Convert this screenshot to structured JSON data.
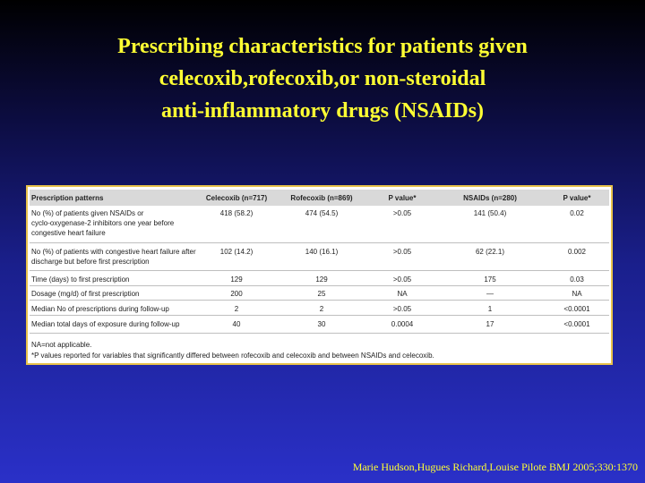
{
  "slide": {
    "title_lines": [
      "Prescribing characteristics for patients given",
      "celecoxib,rofecoxib,or non-steroidal",
      "anti-inflammatory drugs (NSAIDs)"
    ],
    "citation": "Marie Hudson,Hugues Richard,Louise Pilote BMJ 2005;330:1370"
  },
  "table": {
    "headers": [
      "Prescription patterns",
      "Celecoxib (n=717)",
      "Rofecoxib (n=869)",
      "P value*",
      "NSAIDs (n=280)",
      "P value*"
    ],
    "rows": [
      {
        "label_lines": [
          "No (%) of patients given NSAIDs or",
          "cyclo-oxygenase-2 inhibitors one year before",
          "congestive heart failure"
        ],
        "cells": [
          "418 (58.2)",
          "474 (54.5)",
          ">0.05",
          "141 (50.4)",
          "0.02"
        ]
      },
      {
        "label_lines": [
          "No (%) of patients with congestive heart failure after",
          "discharge but before first prescription"
        ],
        "cells": [
          "102 (14.2)",
          "140 (16.1)",
          ">0.05",
          "62 (22.1)",
          "0.002"
        ]
      },
      {
        "label_lines": [
          "Time (days) to first prescription"
        ],
        "cells": [
          "129",
          "129",
          ">0.05",
          "175",
          "0.03"
        ]
      },
      {
        "label_lines": [
          "Dosage (mg/d) of first prescription"
        ],
        "cells": [
          "200",
          "25",
          "NA",
          "—",
          "NA"
        ]
      },
      {
        "label_lines": [
          "Median No of prescriptions during follow-up"
        ],
        "cells": [
          "2",
          "2",
          ">0.05",
          "1",
          "<0.0001"
        ]
      },
      {
        "label_lines": [
          "Median total days of exposure during follow-up"
        ],
        "cells": [
          "40",
          "30",
          "0.0004",
          "17",
          "<0.0001"
        ]
      }
    ],
    "footnotes": [
      "NA=not applicable.",
      "*P values reported for variables that significantly differed between rofecoxib and celecoxib and between NSAIDs and celecoxib."
    ]
  }
}
